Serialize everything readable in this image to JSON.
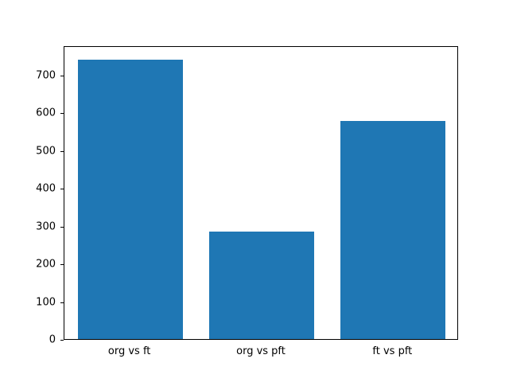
{
  "chart_data": {
    "type": "bar",
    "categories": [
      "org vs ft",
      "org vs pft",
      "ft vs pft"
    ],
    "values": [
      740,
      285,
      578
    ],
    "title": "",
    "xlabel": "",
    "ylabel": "",
    "ylim": [
      0,
      777
    ],
    "yticks": [
      0,
      100,
      200,
      300,
      400,
      500,
      600,
      700
    ],
    "bar_color": "#1f77b4",
    "bar_width_fraction": 0.8,
    "grid": false,
    "legend_position": "none"
  }
}
